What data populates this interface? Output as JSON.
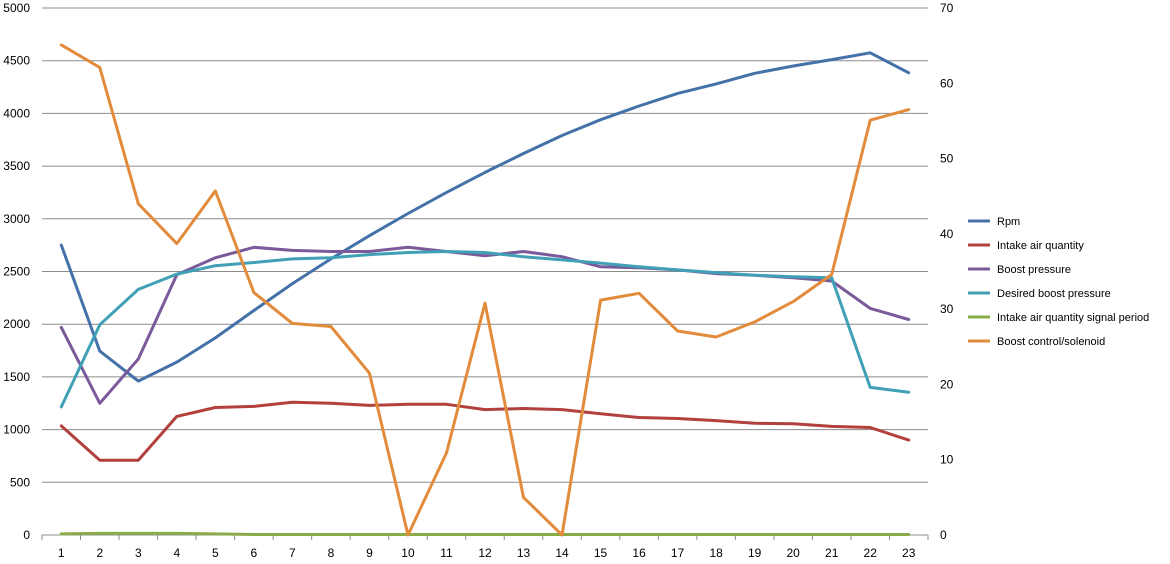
{
  "chart_data": {
    "type": "line",
    "title": "",
    "xlabel": "",
    "ylabel": "",
    "x": [
      1,
      2,
      3,
      4,
      5,
      6,
      7,
      8,
      9,
      10,
      11,
      12,
      13,
      14,
      15,
      16,
      17,
      18,
      19,
      20,
      21,
      22,
      23
    ],
    "ylim": [
      0,
      5000
    ],
    "y_ticks": [
      0,
      500,
      1000,
      1500,
      2000,
      2500,
      3000,
      3500,
      4000,
      4500,
      5000
    ],
    "y2lim": [
      0,
      70
    ],
    "y2_ticks": [
      0,
      10,
      20,
      30,
      40,
      50,
      60,
      70
    ],
    "grid": "horizontal",
    "legend_position": "right",
    "series": [
      {
        "name": "Rpm",
        "axis": "left",
        "color": "#4472a8",
        "values": [
          2750,
          1745,
          1460,
          1640,
          1870,
          2130,
          2385,
          2620,
          2840,
          3050,
          3250,
          3440,
          3620,
          3790,
          3940,
          4070,
          4190,
          4280,
          4380,
          4450,
          4510,
          4575,
          4385
        ]
      },
      {
        "name": "Intake air quantity",
        "axis": "left",
        "color": "#b2413d",
        "values": [
          1035,
          710,
          710,
          1125,
          1210,
          1220,
          1260,
          1250,
          1230,
          1240,
          1240,
          1190,
          1200,
          1190,
          1150,
          1115,
          1105,
          1085,
          1060,
          1055,
          1030,
          1020,
          900
        ]
      },
      {
        "name": "Boost pressure",
        "axis": "left",
        "color": "#7a5a9a",
        "values": [
          1970,
          1250,
          1670,
          2470,
          2630,
          2730,
          2700,
          2690,
          2690,
          2730,
          2690,
          2650,
          2690,
          2640,
          2545,
          2535,
          2515,
          2480,
          2465,
          2440,
          2410,
          2150,
          2045
        ]
      },
      {
        "name": "Desired boost pressure",
        "axis": "left",
        "color": "#3fa0b6",
        "values": [
          1215,
          1995,
          2330,
          2475,
          2555,
          2585,
          2620,
          2630,
          2660,
          2680,
          2690,
          2680,
          2640,
          2610,
          2580,
          2545,
          2515,
          2490,
          2465,
          2450,
          2440,
          1400,
          1355
        ]
      },
      {
        "name": "Intake air quantity signal period",
        "axis": "left",
        "color": "#8aac48",
        "values": [
          10,
          15,
          15,
          15,
          10,
          5,
          5,
          5,
          5,
          5,
          5,
          5,
          5,
          5,
          5,
          5,
          5,
          5,
          5,
          5,
          5,
          5,
          5
        ]
      },
      {
        "name": "Boost control/solenoid",
        "axis": "right",
        "color": "#e28b3b",
        "values": [
          65.1,
          62.1,
          44,
          38.7,
          45.7,
          32.2,
          28.1,
          27.7,
          21.5,
          0,
          10.9,
          30.8,
          5,
          0,
          31.2,
          32.1,
          27.1,
          26.3,
          28.3,
          31,
          34.6,
          55.1,
          56.5
        ]
      }
    ]
  }
}
